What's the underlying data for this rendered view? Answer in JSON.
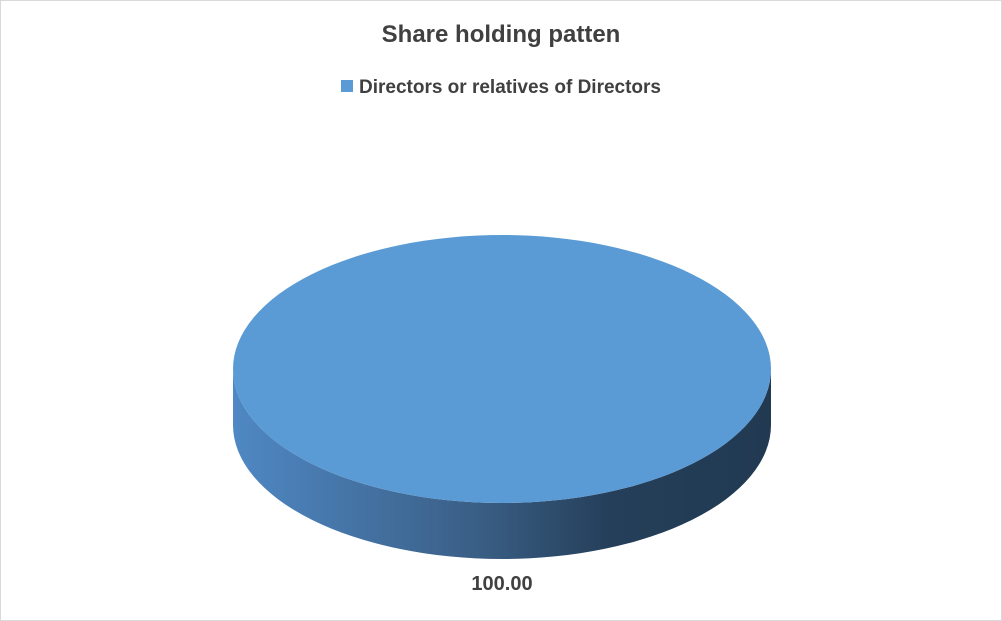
{
  "chart_data": {
    "type": "pie",
    "style": "3d",
    "title": "Share holding patten",
    "legend_position": "top",
    "categories": [
      "Directors or relatives of Directors"
    ],
    "values": [
      100.0
    ],
    "data_labels": [
      "100.00"
    ],
    "colors": [
      "#5b9bd5"
    ]
  }
}
